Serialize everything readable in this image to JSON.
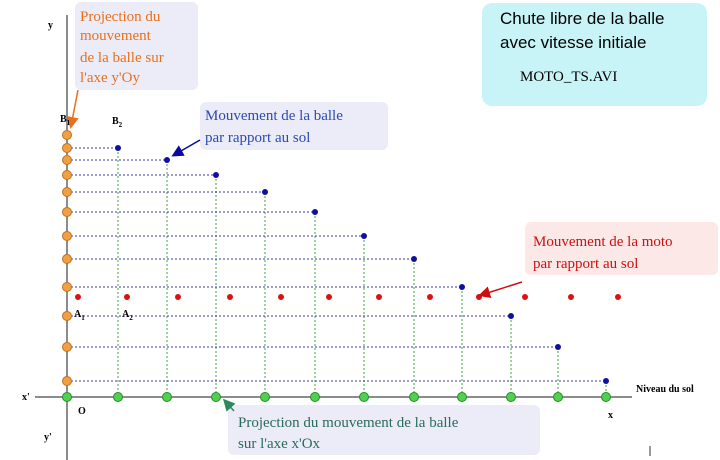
{
  "axes": {
    "y": "y",
    "y_prime": "y'",
    "x": "x",
    "x_prime": "x'",
    "origin": "O",
    "ground": "Niveau du sol"
  },
  "points": {
    "b1": {
      "letter": "B",
      "sub": "1"
    },
    "b2": {
      "letter": "B",
      "sub": "2"
    },
    "a1": {
      "letter": "A",
      "sub": "1"
    },
    "a2": {
      "letter": "A",
      "sub": "2"
    }
  },
  "notes": {
    "projection_y": [
      "Projection du",
      "mouvement",
      "de la balle sur",
      "l'axe y'Oy"
    ],
    "ball_motion": [
      "Mouvement de la balle",
      "par rapport au sol"
    ],
    "moto_motion": [
      "Mouvement de la moto",
      "par rapport au sol"
    ],
    "projection_x": [
      "Projection du mouvement de la balle",
      "sur l'axe x'Ox"
    ]
  },
  "header": {
    "title": [
      "Chute libre de la balle",
      "avec vitesse initiale"
    ],
    "file": "MOTO_TS.AVI"
  }
}
